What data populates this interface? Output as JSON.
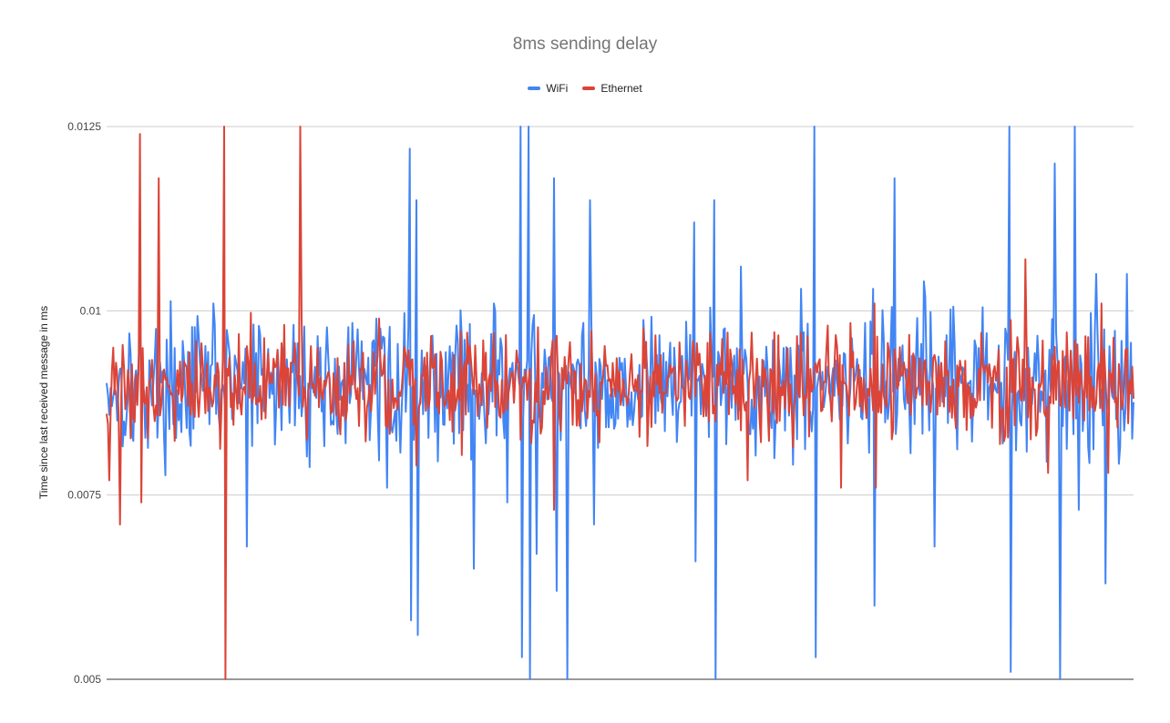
{
  "chart_data": {
    "type": "line",
    "title": "8ms sending delay",
    "xlabel": "",
    "ylabel": "Time since last received message in ms",
    "ylim": [
      0.005,
      0.0125
    ],
    "y_ticks": [
      "0.005",
      "0.0075",
      "0.01",
      "0.0125"
    ],
    "grid": true,
    "legend_position": "top",
    "series": [
      {
        "name": "WiFi",
        "color": "#4285f4",
        "seed": 17,
        "points": 700,
        "baseline": 0.009,
        "noise": 0.00045,
        "spikes": [
          [
            40,
            0.0093
          ],
          [
            65,
            0.0084
          ],
          [
            80,
            0.0101
          ],
          [
            105,
            0.0068
          ],
          [
            160,
            0.0095
          ],
          [
            200,
            0.0096
          ],
          [
            210,
            0.0076
          ],
          [
            227,
            0.0122
          ],
          [
            228,
            0.0058
          ],
          [
            232,
            0.0115
          ],
          [
            233,
            0.0056
          ],
          [
            262,
            0.0098
          ],
          [
            275,
            0.0065
          ],
          [
            290,
            0.0101
          ],
          [
            300,
            0.0074
          ],
          [
            310,
            0.0125
          ],
          [
            311,
            0.0053
          ],
          [
            316,
            0.0125
          ],
          [
            317,
            0.005
          ],
          [
            322,
            0.0067
          ],
          [
            335,
            0.0118
          ],
          [
            337,
            0.0062
          ],
          [
            345,
            0.005
          ],
          [
            362,
            0.0115
          ],
          [
            365,
            0.0071
          ],
          [
            380,
            0.0084
          ],
          [
            425,
            0.0095
          ],
          [
            440,
            0.0112
          ],
          [
            441,
            0.0066
          ],
          [
            455,
            0.0115
          ],
          [
            456,
            0.005
          ],
          [
            475,
            0.0106
          ],
          [
            500,
            0.008
          ],
          [
            520,
            0.0103
          ],
          [
            530,
            0.0125
          ],
          [
            531,
            0.0053
          ],
          [
            555,
            0.0082
          ],
          [
            574,
            0.0103
          ],
          [
            575,
            0.006
          ],
          [
            590,
            0.0118
          ],
          [
            612,
            0.0104
          ],
          [
            620,
            0.0068
          ],
          [
            650,
            0.0096
          ],
          [
            676,
            0.0125
          ],
          [
            677,
            0.0051
          ],
          [
            690,
            0.0095
          ],
          [
            710,
            0.012
          ],
          [
            714,
            0.005
          ],
          [
            725,
            0.0125
          ],
          [
            728,
            0.0073
          ],
          [
            741,
            0.0105
          ],
          [
            748,
            0.0063
          ],
          [
            764,
            0.0105
          ]
        ],
        "x_scale_points": 700
      },
      {
        "name": "Ethernet",
        "color": "#db4437",
        "seed": 91,
        "points": 700,
        "baseline": 0.009,
        "noise": 0.00035,
        "spikes": [
          [
            2,
            0.0077
          ],
          [
            5,
            0.0095
          ],
          [
            10,
            0.0071
          ],
          [
            25,
            0.0124
          ],
          [
            26,
            0.0074
          ],
          [
            39,
            0.0118
          ],
          [
            88,
            0.0125
          ],
          [
            89,
            0.005
          ],
          [
            145,
            0.0125
          ],
          [
            146,
            0.0099
          ],
          [
            147,
            0.0087
          ],
          [
            232,
            0.0079
          ],
          [
            260,
            0.0094
          ],
          [
            290,
            0.0097
          ],
          [
            318,
            0.0082
          ],
          [
            334,
            0.0096
          ],
          [
            335,
            0.0073
          ],
          [
            415,
            0.0094
          ],
          [
            452,
            0.0097
          ],
          [
            480,
            0.0077
          ],
          [
            540,
            0.0098
          ],
          [
            550,
            0.0076
          ],
          [
            575,
            0.0101
          ],
          [
            576,
            0.0076
          ],
          [
            620,
            0.0094
          ],
          [
            655,
            0.0097
          ],
          [
            688,
            0.0107
          ],
          [
            705,
            0.0078
          ],
          [
            725,
            0.0096
          ],
          [
            745,
            0.0101
          ],
          [
            750,
            0.0078
          ]
        ]
      }
    ]
  }
}
